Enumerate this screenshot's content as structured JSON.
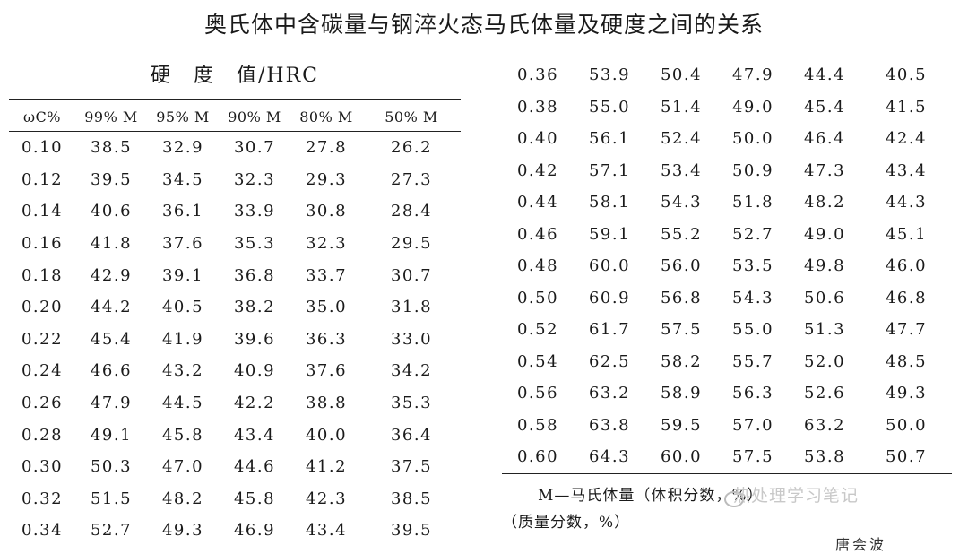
{
  "title": "奥氏体中含碳量与钢淬火态马氏体量及硬度之间的关系",
  "subhead": "硬　度　值/HRC",
  "columns": [
    "ωC%",
    "99% M",
    "95% M",
    "90% M",
    "80% M",
    "50% M"
  ],
  "left_rows": [
    [
      "0.10",
      "38.5",
      "32.9",
      "30.7",
      "27.8",
      "26.2"
    ],
    [
      "0.12",
      "39.5",
      "34.5",
      "32.3",
      "29.3",
      "27.3"
    ],
    [
      "0.14",
      "40.6",
      "36.1",
      "33.9",
      "30.8",
      "28.4"
    ],
    [
      "0.16",
      "41.8",
      "37.6",
      "35.3",
      "32.3",
      "29.5"
    ],
    [
      "0.18",
      "42.9",
      "39.1",
      "36.8",
      "33.7",
      "30.7"
    ],
    [
      "0.20",
      "44.2",
      "40.5",
      "38.2",
      "35.0",
      "31.8"
    ],
    [
      "0.22",
      "45.4",
      "41.9",
      "39.6",
      "36.3",
      "33.0"
    ],
    [
      "0.24",
      "46.6",
      "43.2",
      "40.9",
      "37.6",
      "34.2"
    ],
    [
      "0.26",
      "47.9",
      "44.5",
      "42.2",
      "38.8",
      "35.3"
    ],
    [
      "0.28",
      "49.1",
      "45.8",
      "43.4",
      "40.0",
      "36.4"
    ],
    [
      "0.30",
      "50.3",
      "47.0",
      "44.6",
      "41.2",
      "37.5"
    ],
    [
      "0.32",
      "51.5",
      "48.2",
      "45.8",
      "42.3",
      "38.5"
    ],
    [
      "0.34",
      "52.7",
      "49.3",
      "46.9",
      "43.4",
      "39.5"
    ]
  ],
  "right_rows": [
    [
      "0.36",
      "53.9",
      "50.4",
      "47.9",
      "44.4",
      "40.5"
    ],
    [
      "0.38",
      "55.0",
      "51.4",
      "49.0",
      "45.4",
      "41.5"
    ],
    [
      "0.40",
      "56.1",
      "52.4",
      "50.0",
      "46.4",
      "42.4"
    ],
    [
      "0.42",
      "57.1",
      "53.4",
      "50.9",
      "47.3",
      "43.4"
    ],
    [
      "0.44",
      "58.1",
      "54.3",
      "51.8",
      "48.2",
      "44.3"
    ],
    [
      "0.46",
      "59.1",
      "55.2",
      "52.7",
      "49.0",
      "45.1"
    ],
    [
      "0.48",
      "60.0",
      "56.0",
      "53.5",
      "49.8",
      "46.0"
    ],
    [
      "0.50",
      "60.9",
      "56.8",
      "54.3",
      "50.6",
      "46.8"
    ],
    [
      "0.52",
      "61.7",
      "57.5",
      "55.0",
      "51.3",
      "47.7"
    ],
    [
      "0.54",
      "62.5",
      "58.2",
      "55.7",
      "52.0",
      "48.5"
    ],
    [
      "0.56",
      "63.2",
      "58.9",
      "56.3",
      "52.6",
      "49.3"
    ],
    [
      "0.58",
      "63.8",
      "59.5",
      "57.0",
      "63.2",
      "50.0"
    ],
    [
      "0.60",
      "64.3",
      "60.0",
      "57.5",
      "53.8",
      "50.7"
    ]
  ],
  "note": {
    "line1": "M—马氏体量（体积分数，%）",
    "line2": "（质量分数，%）"
  },
  "watermark": "热处理学习笔记",
  "cut_text": "唐会波"
}
